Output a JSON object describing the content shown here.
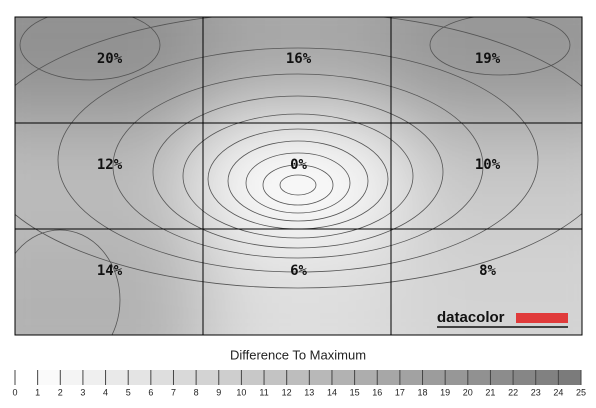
{
  "chart_data": {
    "type": "heatmap",
    "values": [
      [
        20,
        16,
        19
      ],
      [
        12,
        0,
        10
      ],
      [
        14,
        6,
        8
      ]
    ],
    "value_labels": [
      [
        "20%",
        "16%",
        "19%"
      ],
      [
        "12%",
        "0%",
        "10%"
      ],
      [
        "14%",
        "6%",
        "8%"
      ]
    ],
    "colors": [
      "#ffffff",
      "#767676"
    ],
    "clim": [
      0,
      25
    ],
    "colorbar_title": "Difference To Maximum",
    "colorbar_ticks": [
      0,
      1,
      2,
      3,
      4,
      5,
      6,
      7,
      8,
      9,
      10,
      11,
      12,
      13,
      14,
      15,
      16,
      17,
      18,
      19,
      20,
      21,
      22,
      23,
      24,
      25
    ],
    "logo": "datacolor"
  }
}
